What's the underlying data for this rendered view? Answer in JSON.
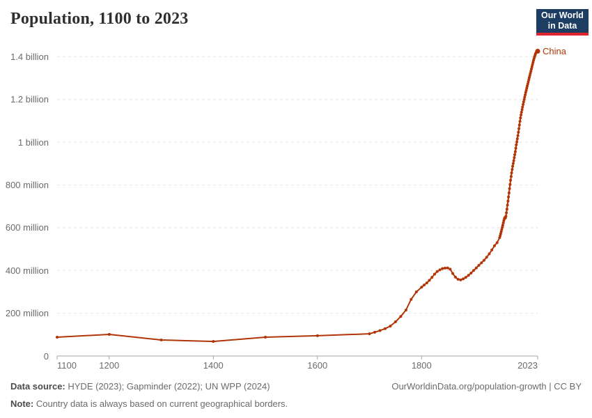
{
  "header": {
    "title": "Population, 1100 to 2023",
    "logo": {
      "line1": "Our World",
      "line2": "in Data",
      "bg_color": "#1d3d63",
      "accent_color": "#e0232e"
    }
  },
  "footer": {
    "data_source_label": "Data source:",
    "data_source_text": "HYDE (2023); Gapminder (2022); UN WPP (2024)",
    "note_label": "Note:",
    "note_text": "Country data is always based on current geographical borders.",
    "credit": "OurWorldinData.org/population-growth | CC BY"
  },
  "colors": {
    "line": "#b13507",
    "grid": "#dedede",
    "axis": "#a3a3a3",
    "tick_text": "#6b6b6b",
    "title_text": "#2f2f2f"
  },
  "chart_data": {
    "type": "line",
    "title": "Population, 1100 to 2023",
    "xlabel": "",
    "ylabel": "",
    "unit": "people (millions)",
    "grid": "horizontal-dashed",
    "legend_position": "end-of-line-label",
    "xlim": [
      1100,
      2023
    ],
    "ylim": [
      0,
      1400
    ],
    "xticks": [
      {
        "value": 1100,
        "label": "1100"
      },
      {
        "value": 1200,
        "label": "1200"
      },
      {
        "value": 1400,
        "label": "1400"
      },
      {
        "value": 1600,
        "label": "1600"
      },
      {
        "value": 1800,
        "label": "1800"
      },
      {
        "value": 2023,
        "label": "2023"
      }
    ],
    "yticks": [
      {
        "value": 0,
        "label": "0"
      },
      {
        "value": 200,
        "label": "200 million"
      },
      {
        "value": 400,
        "label": "400 million"
      },
      {
        "value": 600,
        "label": "600 million"
      },
      {
        "value": 800,
        "label": "800 million"
      },
      {
        "value": 1000,
        "label": "1 billion"
      },
      {
        "value": 1200,
        "label": "1.2 billion"
      },
      {
        "value": 1400,
        "label": "1.4 billion"
      }
    ],
    "series": [
      {
        "name": "China",
        "color": "#b13507",
        "points": [
          [
            1100,
            88
          ],
          [
            1200,
            101
          ],
          [
            1300,
            75
          ],
          [
            1400,
            68
          ],
          [
            1500,
            88
          ],
          [
            1600,
            95
          ],
          [
            1700,
            104
          ],
          [
            1710,
            111
          ],
          [
            1720,
            119
          ],
          [
            1730,
            128
          ],
          [
            1740,
            140
          ],
          [
            1750,
            160
          ],
          [
            1760,
            185
          ],
          [
            1770,
            215
          ],
          [
            1780,
            265
          ],
          [
            1790,
            300
          ],
          [
            1800,
            322
          ],
          [
            1805,
            332
          ],
          [
            1810,
            342
          ],
          [
            1815,
            354
          ],
          [
            1820,
            368
          ],
          [
            1825,
            383
          ],
          [
            1830,
            395
          ],
          [
            1835,
            403
          ],
          [
            1840,
            409
          ],
          [
            1845,
            411
          ],
          [
            1850,
            412
          ],
          [
            1855,
            406
          ],
          [
            1860,
            386
          ],
          [
            1865,
            369
          ],
          [
            1870,
            359
          ],
          [
            1875,
            356
          ],
          [
            1880,
            361
          ],
          [
            1885,
            368
          ],
          [
            1890,
            377
          ],
          [
            1895,
            388
          ],
          [
            1900,
            400
          ],
          [
            1905,
            412
          ],
          [
            1910,
            424
          ],
          [
            1915,
            436
          ],
          [
            1920,
            448
          ],
          [
            1925,
            462
          ],
          [
            1930,
            478
          ],
          [
            1935,
            496
          ],
          [
            1940,
            516
          ],
          [
            1945,
            530
          ],
          [
            1950,
            554
          ],
          [
            1951,
            563
          ],
          [
            1952,
            572
          ],
          [
            1953,
            582
          ],
          [
            1954,
            592
          ],
          [
            1955,
            602
          ],
          [
            1956,
            612
          ],
          [
            1957,
            623
          ],
          [
            1958,
            634
          ],
          [
            1959,
            642
          ],
          [
            1960,
            648
          ],
          [
            1961,
            646
          ],
          [
            1962,
            654
          ],
          [
            1963,
            670
          ],
          [
            1964,
            687
          ],
          [
            1965,
            706
          ],
          [
            1966,
            725
          ],
          [
            1967,
            744
          ],
          [
            1968,
            763
          ],
          [
            1969,
            783
          ],
          [
            1970,
            803
          ],
          [
            1971,
            822
          ],
          [
            1972,
            840
          ],
          [
            1973,
            857
          ],
          [
            1974,
            873
          ],
          [
            1975,
            888
          ],
          [
            1976,
            901
          ],
          [
            1977,
            914
          ],
          [
            1978,
            928
          ],
          [
            1979,
            942
          ],
          [
            1980,
            956
          ],
          [
            1981,
            972
          ],
          [
            1982,
            988
          ],
          [
            1983,
            1002
          ],
          [
            1984,
            1016
          ],
          [
            1985,
            1031
          ],
          [
            1986,
            1047
          ],
          [
            1987,
            1064
          ],
          [
            1988,
            1081
          ],
          [
            1989,
            1098
          ],
          [
            1990,
            1114
          ],
          [
            1991,
            1128
          ],
          [
            1992,
            1141
          ],
          [
            1993,
            1153
          ],
          [
            1994,
            1165
          ],
          [
            1995,
            1177
          ],
          [
            1996,
            1189
          ],
          [
            1997,
            1200
          ],
          [
            1998,
            1211
          ],
          [
            1999,
            1222
          ],
          [
            2000,
            1233
          ],
          [
            2001,
            1243
          ],
          [
            2002,
            1253
          ],
          [
            2003,
            1263
          ],
          [
            2004,
            1273
          ],
          [
            2005,
            1283
          ],
          [
            2006,
            1293
          ],
          [
            2007,
            1303
          ],
          [
            2008,
            1313
          ],
          [
            2009,
            1323
          ],
          [
            2010,
            1333
          ],
          [
            2011,
            1343
          ],
          [
            2012,
            1353
          ],
          [
            2013,
            1363
          ],
          [
            2014,
            1373
          ],
          [
            2015,
            1383
          ],
          [
            2016,
            1392
          ],
          [
            2017,
            1400
          ],
          [
            2018,
            1408
          ],
          [
            2019,
            1415
          ],
          [
            2020,
            1420
          ],
          [
            2021,
            1424
          ],
          [
            2022,
            1426
          ],
          [
            2023,
            1426
          ]
        ]
      }
    ]
  }
}
